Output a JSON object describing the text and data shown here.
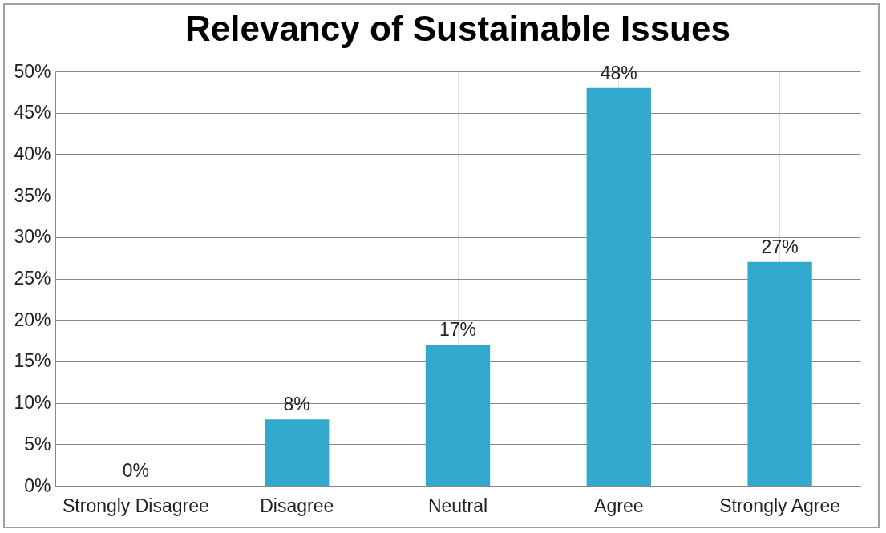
{
  "chart_data": {
    "type": "bar",
    "title": "Relevancy of Sustainable Issues",
    "categories": [
      "Strongly Disagree",
      "Disagree",
      "Neutral",
      "Agree",
      "Strongly Agree"
    ],
    "values": [
      0,
      8,
      17,
      48,
      27
    ],
    "value_labels": [
      "0%",
      "8%",
      "17%",
      "48%",
      "27%"
    ],
    "color": "#31a9cc",
    "ylim": [
      0,
      50
    ],
    "yticks": [
      {
        "value": 0,
        "label": "0%"
      },
      {
        "value": 5,
        "label": "5%"
      },
      {
        "value": 10,
        "label": "10%"
      },
      {
        "value": 15,
        "label": "15%"
      },
      {
        "value": 20,
        "label": "20%"
      },
      {
        "value": 25,
        "label": "25%"
      },
      {
        "value": 30,
        "label": "30%"
      },
      {
        "value": 35,
        "label": "35%"
      },
      {
        "value": 40,
        "label": "40%"
      },
      {
        "value": 45,
        "label": "45%"
      },
      {
        "value": 50,
        "label": "50%"
      }
    ],
    "grid": true
  }
}
